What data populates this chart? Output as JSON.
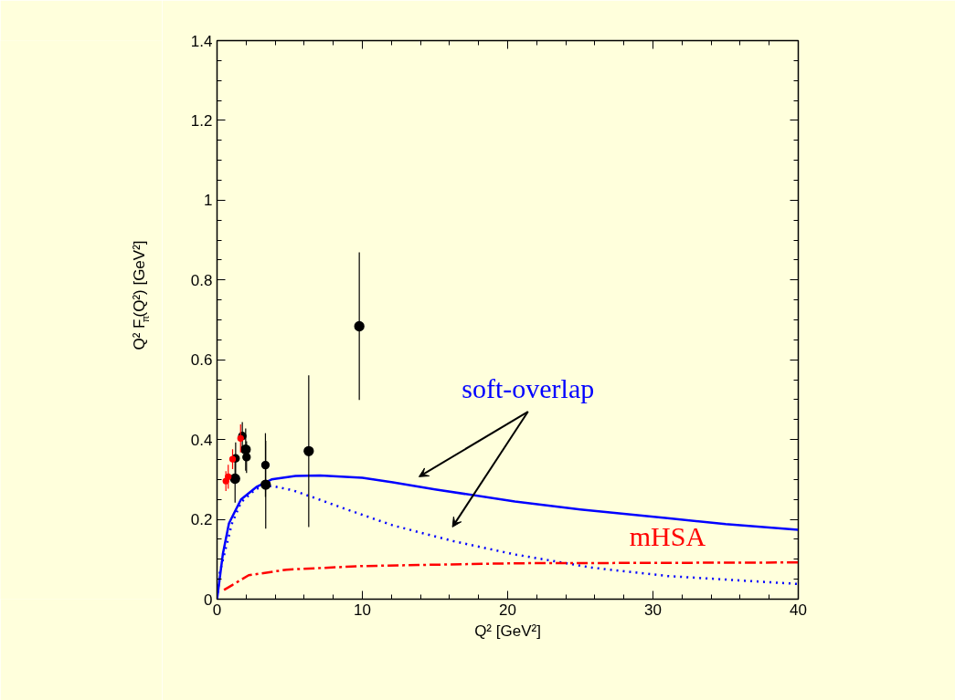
{
  "chart_data": {
    "type": "line",
    "xlabel": "Q² [GeV²]",
    "ylabel": "Q² F$_{π}$(Q²) [GeV²]",
    "xlim": [
      0,
      40
    ],
    "xticks": [
      0,
      10,
      20,
      30,
      40
    ],
    "ylim": [
      0,
      1.4
    ],
    "yticks": [
      0,
      0.2,
      0.4,
      0.6,
      0.8,
      1,
      1.2,
      1.4
    ],
    "grid": false,
    "annotations": [
      "soft-overlap",
      "mHSA"
    ],
    "series": [
      {
        "color": "#0000ff",
        "line_style": "solid",
        "x": [
          0,
          0.4,
          0.82,
          1.65,
          2.7,
          3.75,
          5.4,
          7.1,
          10,
          12.1,
          15,
          20.5,
          25,
          31,
          35,
          40
        ],
        "values": [
          0,
          0.113,
          0.19,
          0.25,
          0.281,
          0.3,
          0.309,
          0.31,
          0.304,
          0.293,
          0.275,
          0.245,
          0.225,
          0.203,
          0.188,
          0.174
        ]
      },
      {
        "color": "#0000ff",
        "line_style": "dotted",
        "x": [
          0,
          0.19,
          0.5,
          1.03,
          1.65,
          2.7,
          3.75,
          5.2,
          6.7,
          9,
          12.1,
          16.3,
          20.5,
          25.8,
          31,
          40
        ],
        "values": [
          0,
          0.067,
          0.113,
          0.19,
          0.243,
          0.277,
          0.284,
          0.273,
          0.254,
          0.224,
          0.185,
          0.145,
          0.112,
          0.079,
          0.058,
          0.038
        ]
      },
      {
        "color": "#ff0000",
        "line_style": "dashdot",
        "x": [
          0.48,
          2.18,
          4.8,
          10,
          20.5,
          31,
          40
        ],
        "values": [
          0.023,
          0.06,
          0.074,
          0.083,
          0.09,
          0.091,
          0.092
        ]
      },
      {
        "type": "scatter",
        "color": "#000000",
        "marker": "circle",
        "x": [
          1.24,
          1.97,
          3.35,
          6.31,
          9.79
        ],
        "values": [
          0.302,
          0.375,
          0.287,
          0.371,
          0.684
        ],
        "errors": [
          0.06,
          0.053,
          0.11,
          0.19,
          0.185
        ]
      },
      {
        "type": "scatter",
        "color": "#000000",
        "marker": "circle",
        "x": [
          1.28,
          1.74,
          2.03,
          3.33
        ],
        "values": [
          0.353,
          0.409,
          0.356,
          0.336
        ],
        "errors": [
          0.04,
          0.035,
          0.04,
          0.08
        ]
      },
      {
        "type": "scatter",
        "color": "#ff0000",
        "marker": "circle",
        "x": [
          0.61,
          0.77,
          1.07,
          1.62
        ],
        "values": [
          0.296,
          0.307,
          0.351,
          0.403
        ],
        "errors": [
          0.025,
          0.03,
          0.025,
          0.035
        ]
      }
    ]
  }
}
